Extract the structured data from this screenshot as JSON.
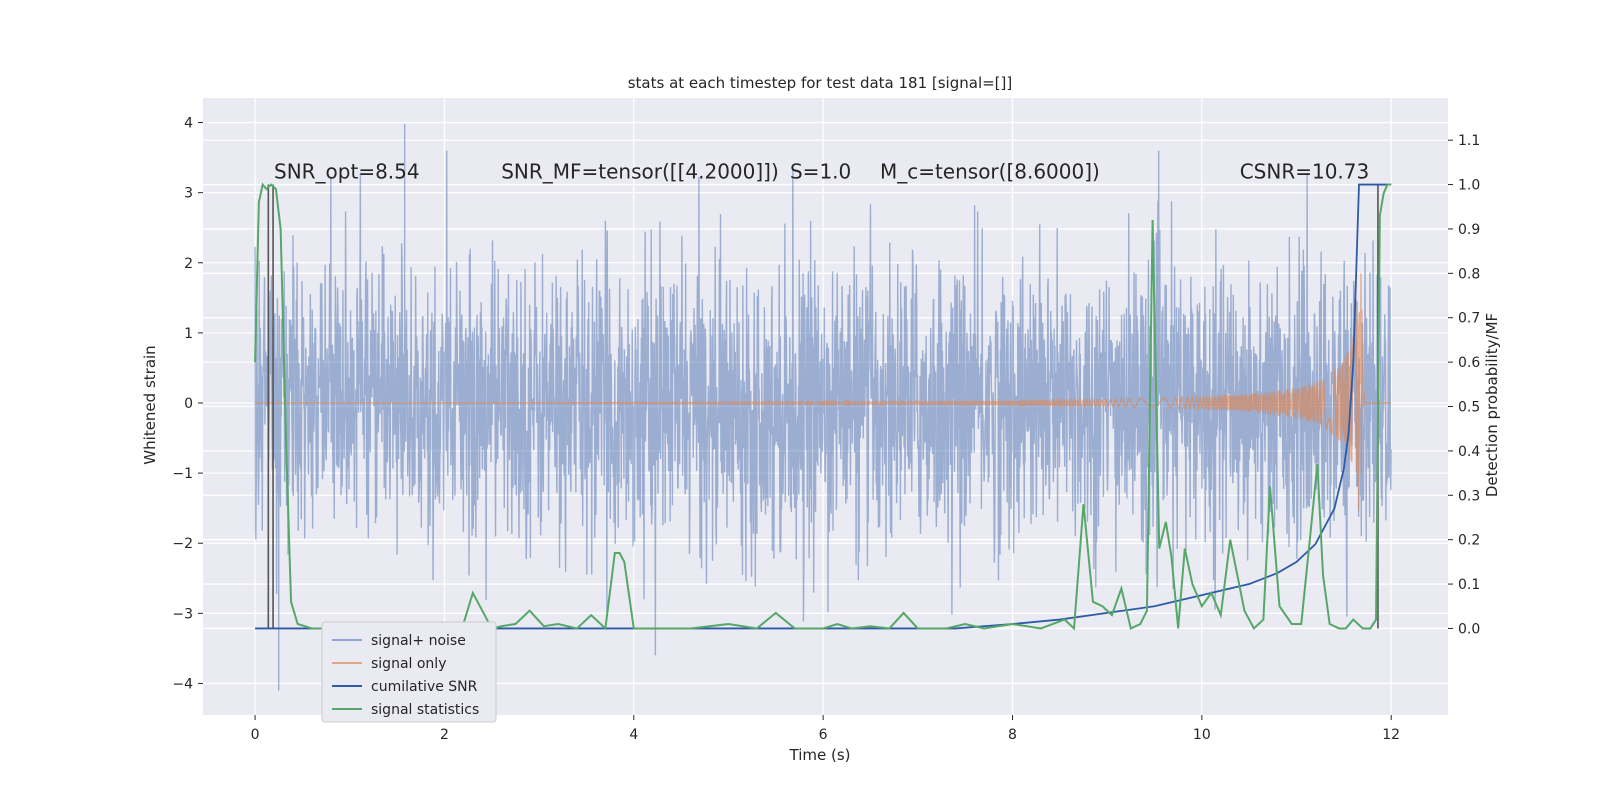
{
  "chart_data": {
    "type": "line",
    "title": "stats at each timestep for test data 181 [signal=[]]",
    "xlabel": "Time (s)",
    "ylabel": "Whitened strain",
    "y2label": "Detection probability/MF",
    "xlim": [
      -0.55,
      12.6
    ],
    "ylim": [
      -4.45,
      4.35
    ],
    "y2lim": [
      -0.195,
      1.195
    ],
    "x_ticks": [
      0,
      2,
      4,
      6,
      8,
      10,
      12
    ],
    "y_ticks": [
      -4,
      -3,
      -2,
      -1,
      0,
      1,
      2,
      3,
      4
    ],
    "y2_ticks": [
      0.0,
      0.1,
      0.2,
      0.3,
      0.4,
      0.5,
      0.6,
      0.7,
      0.8,
      0.9,
      1.0,
      1.1
    ],
    "grid": true,
    "legend_position": "lower-left",
    "annotations": [
      {
        "text": "SNR_opt=8.54",
        "x": 0.2,
        "y": 3.2
      },
      {
        "text": "SNR_MF=tensor([[4.2000]])",
        "x": 2.6,
        "y": 3.2
      },
      {
        "text": "S=1.0",
        "x": 5.65,
        "y": 3.2
      },
      {
        "text": "M_c=tensor([8.6000])",
        "x": 6.6,
        "y": 3.2
      },
      {
        "text": "CSNR=10.73",
        "x": 10.4,
        "y": 3.2
      }
    ],
    "series": [
      {
        "name": "signal+ noise",
        "color": "#4c72b0",
        "axis": "left",
        "description": "noisy whitened strain spanning roughly -2.5 to 2.5 with spikes to 4 and -4.1",
        "x_range": [
          0,
          12
        ],
        "amplitude": 1.6,
        "peak": 3.98,
        "trough": -4.1
      },
      {
        "name": "signal only",
        "color": "#dd8452",
        "axis": "left",
        "description": "chirp growing in amplitude toward merger near t=11.7",
        "x": [
          0,
          6,
          8,
          9,
          10,
          10.5,
          11,
          11.3,
          11.5,
          11.6,
          11.68,
          11.72
        ],
        "envelope": [
          0.0,
          0.01,
          0.03,
          0.05,
          0.09,
          0.13,
          0.22,
          0.35,
          0.6,
          0.95,
          1.9,
          0.0
        ]
      },
      {
        "name": "cumilative SNR",
        "color": "#2d5ba8",
        "axis": "right",
        "x": [
          0,
          7.4,
          8,
          8.5,
          9,
          9.5,
          10,
          10.5,
          10.8,
          11.0,
          11.2,
          11.4,
          11.5,
          11.55,
          11.6,
          11.63,
          11.66,
          12.0
        ],
        "values": [
          0.0,
          0.0,
          0.01,
          0.02,
          0.035,
          0.05,
          0.075,
          0.1,
          0.125,
          0.15,
          0.19,
          0.27,
          0.36,
          0.44,
          0.6,
          0.8,
          1.0,
          1.0
        ]
      },
      {
        "name": "signal statistics",
        "color": "#55a868",
        "axis": "right",
        "x": [
          0,
          0.04,
          0.08,
          0.12,
          0.17,
          0.22,
          0.27,
          0.33,
          0.38,
          0.45,
          0.6,
          1.0,
          1.3,
          1.6,
          2.0,
          2.2,
          2.3,
          2.4,
          2.5,
          2.6,
          2.75,
          2.9,
          3.05,
          3.2,
          3.4,
          3.55,
          3.7,
          3.8,
          3.85,
          3.9,
          4.0,
          4.2,
          4.6,
          5.0,
          5.3,
          5.5,
          5.7,
          6.0,
          6.15,
          6.3,
          6.5,
          6.7,
          6.85,
          7.0,
          7.3,
          7.5,
          7.7,
          8.0,
          8.3,
          8.55,
          8.65,
          8.75,
          8.85,
          8.95,
          9.05,
          9.15,
          9.25,
          9.35,
          9.42,
          9.48,
          9.55,
          9.62,
          9.68,
          9.75,
          9.82,
          9.9,
          10.0,
          10.1,
          10.2,
          10.3,
          10.45,
          10.55,
          10.65,
          10.72,
          10.82,
          10.95,
          11.05,
          11.15,
          11.22,
          11.28,
          11.35,
          11.45,
          11.52,
          11.6,
          11.7,
          11.78,
          11.84,
          11.88,
          11.92,
          11.96,
          12.0
        ],
        "values": [
          0.6,
          0.96,
          1.0,
          0.99,
          1.0,
          0.99,
          0.9,
          0.4,
          0.06,
          0.01,
          0.0,
          0.0,
          0.002,
          0.0,
          0.0,
          0.01,
          0.08,
          0.04,
          0.0,
          0.005,
          0.01,
          0.04,
          0.005,
          0.01,
          0.0,
          0.03,
          0.0,
          0.17,
          0.17,
          0.15,
          0.0,
          0.0,
          0.0,
          0.01,
          0.0,
          0.035,
          0.0,
          0.0,
          0.01,
          0.0,
          0.005,
          0.0,
          0.035,
          0.0,
          0.0,
          0.01,
          0.0,
          0.01,
          0.0,
          0.02,
          0.0,
          0.28,
          0.06,
          0.05,
          0.03,
          0.09,
          0.0,
          0.01,
          0.04,
          0.92,
          0.18,
          0.24,
          0.16,
          0.0,
          0.18,
          0.1,
          0.05,
          0.08,
          0.03,
          0.2,
          0.04,
          0.0,
          0.02,
          0.32,
          0.05,
          0.01,
          0.01,
          0.22,
          0.37,
          0.12,
          0.01,
          0.0,
          0.0,
          0.02,
          0.0,
          0.0,
          0.02,
          0.93,
          0.98,
          1.0,
          1.0
        ]
      },
      {
        "name": "",
        "color": "#555555",
        "axis": "right",
        "description": "vertical threshold markers",
        "x": [
          0.14,
          0.19,
          11.86
        ],
        "values": [
          1.0,
          1.0,
          1.0
        ]
      }
    ]
  },
  "legend": {
    "items": [
      {
        "label": "signal+ noise",
        "color": "#8ea6d1"
      },
      {
        "label": "signal only",
        "color": "#e0a487"
      },
      {
        "label": "cumilative SNR",
        "color": "#2d5ba8"
      },
      {
        "label": "signal statistics",
        "color": "#55a868"
      }
    ]
  }
}
